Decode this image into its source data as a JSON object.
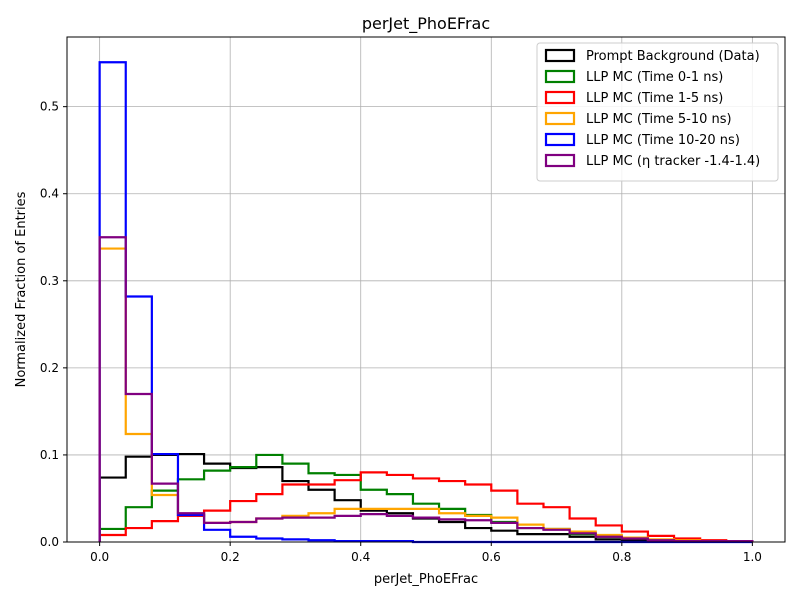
{
  "chart_data": {
    "type": "histogram-step",
    "title": "perJet_PhoEFrac",
    "xlabel": "perJet_PhoEFrac",
    "ylabel": "Normalized Fraction of Entries",
    "xlim": [
      -0.05,
      1.05
    ],
    "ylim": [
      0,
      0.58
    ],
    "xticks": [
      0.0,
      0.2,
      0.4,
      0.6,
      0.8,
      1.0
    ],
    "xtick_labels": [
      "0.0",
      "0.2",
      "0.4",
      "0.6",
      "0.8",
      "1.0"
    ],
    "yticks": [
      0.0,
      0.1,
      0.2,
      0.3,
      0.4,
      0.5
    ],
    "ytick_labels": [
      "0.0",
      "0.1",
      "0.2",
      "0.3",
      "0.4",
      "0.5"
    ],
    "grid": true,
    "legend_position": "top-right",
    "bin_edges": [
      0.0,
      0.04,
      0.08,
      0.12,
      0.16,
      0.2,
      0.24,
      0.28,
      0.32,
      0.36,
      0.4,
      0.44,
      0.48,
      0.52,
      0.56,
      0.6,
      0.64,
      0.68,
      0.72,
      0.76,
      0.8,
      0.84,
      0.88,
      0.92,
      0.96,
      1.0
    ],
    "series": [
      {
        "name": "Prompt Background (Data)",
        "color": "#000000",
        "values": [
          0.074,
          0.098,
          0.1,
          0.101,
          0.09,
          0.085,
          0.086,
          0.07,
          0.06,
          0.048,
          0.036,
          0.033,
          0.027,
          0.023,
          0.016,
          0.013,
          0.009,
          0.009,
          0.006,
          0.003,
          0.002,
          0.001,
          0.001,
          0.001,
          0.001
        ]
      },
      {
        "name": "LLP MC (Time 0-1 ns)",
        "color": "#008000",
        "values": [
          0.015,
          0.04,
          0.059,
          0.072,
          0.082,
          0.086,
          0.1,
          0.09,
          0.079,
          0.077,
          0.06,
          0.055,
          0.044,
          0.038,
          0.031,
          0.023,
          0.016,
          0.015,
          0.009,
          0.006,
          0.004,
          0.002,
          0.001,
          0.001,
          0.001
        ]
      },
      {
        "name": "LLP MC (Time 1-5 ns)",
        "color": "#ff0000",
        "values": [
          0.008,
          0.016,
          0.024,
          0.03,
          0.036,
          0.047,
          0.055,
          0.066,
          0.066,
          0.071,
          0.08,
          0.077,
          0.073,
          0.07,
          0.066,
          0.059,
          0.044,
          0.04,
          0.027,
          0.019,
          0.012,
          0.007,
          0.004,
          0.002,
          0.001
        ]
      },
      {
        "name": "LLP MC (Time 5-10 ns)",
        "color": "#ffa500",
        "values": [
          0.337,
          0.124,
          0.054,
          0.031,
          0.022,
          0.023,
          0.027,
          0.03,
          0.033,
          0.038,
          0.038,
          0.038,
          0.038,
          0.033,
          0.03,
          0.028,
          0.02,
          0.015,
          0.012,
          0.008,
          0.005,
          0.003,
          0.002,
          0.001,
          0.001
        ]
      },
      {
        "name": "LLP MC (Time 10-20 ns)",
        "color": "#0000ff",
        "values": [
          0.551,
          0.282,
          0.101,
          0.031,
          0.014,
          0.006,
          0.004,
          0.003,
          0.002,
          0.001,
          0.001,
          0.001,
          0.0,
          0.0,
          0.0,
          0.0,
          0.0,
          0.0,
          0.0,
          0.0,
          0.0,
          0.0,
          0.0,
          0.0,
          0.0
        ]
      },
      {
        "name": "LLP MC (η tracker -1.4-1.4)",
        "color": "#800080",
        "values": [
          0.35,
          0.17,
          0.067,
          0.033,
          0.022,
          0.023,
          0.027,
          0.028,
          0.028,
          0.03,
          0.032,
          0.03,
          0.028,
          0.026,
          0.025,
          0.022,
          0.016,
          0.014,
          0.01,
          0.006,
          0.004,
          0.002,
          0.001,
          0.001,
          0.001
        ]
      }
    ]
  }
}
